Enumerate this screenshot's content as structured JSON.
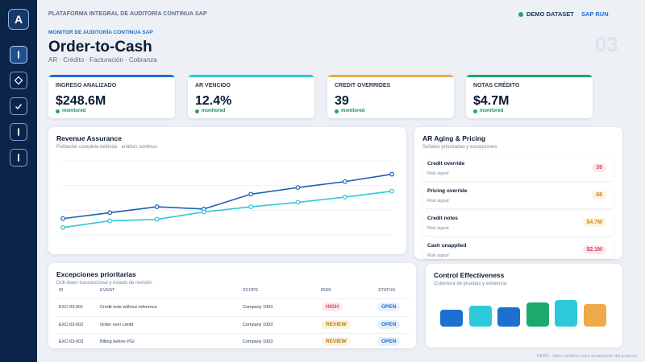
{
  "app": {
    "logo_letter": "A",
    "platform_title": "PLATAFORMA INTEGRAL DE AUDITORÍA CONTINUA SAP",
    "demo_badge": "DEMO DATASET",
    "sap_run": "SAP RUN",
    "kicker": "MONITOR DE AUDITORÍA CONTINUA SAP",
    "title": "Order-to-Cash",
    "subtitle": "AR · Crédito · Facturación · Cobranza",
    "page_number": "03",
    "footer": "DEMO · datos sintéticos para visualización del producto"
  },
  "sidebar": {
    "items": [
      {
        "icon": "bar-icon",
        "active": true
      },
      {
        "icon": "diamond-icon",
        "active": false
      },
      {
        "icon": "check-icon",
        "active": false
      },
      {
        "icon": "bar-icon",
        "active": false
      },
      {
        "icon": "bar-icon",
        "active": false
      }
    ]
  },
  "kpis": [
    {
      "label": "INGRESO ANALIZADO",
      "value": "$248.6M",
      "status": "monitored",
      "color": "#1d6fd0"
    },
    {
      "label": "AR VENCIDO",
      "value": "12.4%",
      "status": "monitored",
      "color": "#2ec9d8"
    },
    {
      "label": "CREDIT OVERRIDES",
      "value": "39",
      "status": "monitored",
      "color": "#f0a94a"
    },
    {
      "label": "NOTAS CRÉDITO",
      "value": "$4.7M",
      "status": "monitored",
      "color": "#1ea86b"
    }
  ],
  "revenue": {
    "title": "Revenue Assurance",
    "subtitle": "Población completa definida · análisis continuo"
  },
  "chart_data": {
    "type": "line",
    "title": "Revenue Assurance",
    "x": [
      1,
      2,
      3,
      4,
      5,
      6,
      7,
      8
    ],
    "ylim": [
      0,
      100
    ],
    "series": [
      {
        "color": "#1d5fb8",
        "values": [
          22,
          30,
          38,
          35,
          55,
          64,
          72,
          82
        ]
      },
      {
        "color": "#2ec9d8",
        "values": [
          10,
          19,
          21,
          31,
          38,
          44,
          51,
          59
        ]
      }
    ],
    "grid": true
  },
  "aging": {
    "title": "AR Aging & Pricing",
    "subtitle": "Señales priorizadas y excepciones",
    "rows": [
      {
        "name": "Credit override",
        "sub": "Risk signal",
        "value": "39",
        "color": "#d9435b",
        "bg": "#fde8ec"
      },
      {
        "name": "Pricing override",
        "sub": "Risk signal",
        "value": "68",
        "color": "#c98a1c",
        "bg": "#fdf3df"
      },
      {
        "name": "Credit notes",
        "sub": "Risk signal",
        "value": "$4.7M",
        "color": "#c98a1c",
        "bg": "#fdf3df"
      },
      {
        "name": "Cash unapplied",
        "sub": "Risk signal",
        "value": "$2.1M",
        "color": "#d9435b",
        "bg": "#fde8ec"
      }
    ]
  },
  "exceptions": {
    "title": "Excepciones prioritarias",
    "subtitle": "Drill-down transaccional y estado de revisión",
    "columns": [
      "ID",
      "EVENT",
      "SCOPE",
      "RISK",
      "STATUS"
    ],
    "rows": [
      {
        "id": "EXC-03-001",
        "event": "Credit note without reference",
        "scope": "Company 1003",
        "risk": "HIGH",
        "risk_color": "#d9435b",
        "risk_bg": "#fde8ec",
        "status": "OPEN"
      },
      {
        "id": "EXC-03-002",
        "event": "Order over credit",
        "scope": "Company 1003",
        "risk": "REVIEW",
        "risk_color": "#b07a10",
        "risk_bg": "#fdf3df",
        "status": "OPEN"
      },
      {
        "id": "EXC-03-003",
        "event": "Billing before PGI",
        "scope": "Company 1003",
        "risk": "REVIEW",
        "risk_color": "#b07a10",
        "risk_bg": "#fdf3df",
        "status": "OPEN"
      }
    ],
    "status_color": "#1d6fd0",
    "status_bg": "#e6f0fc"
  },
  "control": {
    "title": "Control Effectiveness",
    "subtitle": "Cobertura de pruebas y evidencia",
    "bars": [
      {
        "value": 0.54,
        "color": "#1d6fd0"
      },
      {
        "value": 0.69,
        "color": "#2ec9d8"
      },
      {
        "value": 0.62,
        "color": "#1d6fd0"
      },
      {
        "value": 0.8,
        "color": "#1ea86b"
      },
      {
        "value": 0.87,
        "color": "#2ec9d8"
      },
      {
        "value": 0.73,
        "color": "#f0a94a"
      }
    ]
  }
}
